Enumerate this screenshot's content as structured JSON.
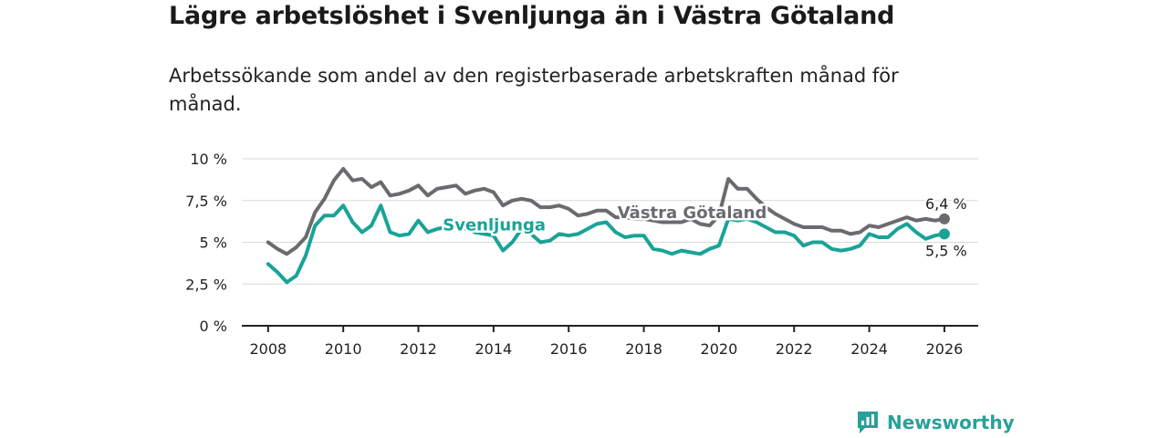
{
  "header": {
    "title": "Lägre arbetslöshet i Svenljunga än i Västra Götaland",
    "subtitle": "Arbetssökande som andel av den registerbaserade arbetskraften månad för månad."
  },
  "brand": {
    "name": "Newsworthy",
    "color": "#2aa198"
  },
  "chart_data": {
    "type": "line",
    "title": "Lägre arbetslöshet i Svenljunga än i Västra Götaland",
    "subtitle": "Arbetssökande som andel av den registerbaserade arbetskraften månad för månad.",
    "xlabel": "",
    "ylabel": "",
    "xlim": [
      2007.3,
      2026.9
    ],
    "ylim": [
      0,
      10
    ],
    "grid": true,
    "x_ticks": [
      2008,
      2010,
      2012,
      2014,
      2016,
      2018,
      2020,
      2022,
      2024,
      2026
    ],
    "x_tick_labels": [
      "2008",
      "2010",
      "2012",
      "2014",
      "2016",
      "2018",
      "2020",
      "2022",
      "2024",
      "2026"
    ],
    "y_ticks": [
      0,
      2.5,
      5,
      7.5,
      10
    ],
    "y_tick_labels": [
      "0 %",
      "2,5 %",
      "5 %",
      "7,5 %",
      "10 %"
    ],
    "series": [
      {
        "name": "Västra Götaland",
        "label": "Västra Götaland",
        "color": "#6b6a6e",
        "end_label": "6,4 %",
        "x": [
          2008.0,
          2008.25,
          2008.5,
          2008.75,
          2009.0,
          2009.25,
          2009.5,
          2009.75,
          2010.0,
          2010.25,
          2010.5,
          2010.75,
          2011.0,
          2011.25,
          2011.5,
          2011.75,
          2012.0,
          2012.25,
          2012.5,
          2012.75,
          2013.0,
          2013.25,
          2013.5,
          2013.75,
          2014.0,
          2014.25,
          2014.5,
          2014.75,
          2015.0,
          2015.25,
          2015.5,
          2015.75,
          2016.0,
          2016.25,
          2016.5,
          2016.75,
          2017.0,
          2017.25,
          2017.5,
          2017.75,
          2018.0,
          2018.25,
          2018.5,
          2018.75,
          2019.0,
          2019.25,
          2019.5,
          2019.75,
          2020.0,
          2020.25,
          2020.5,
          2020.75,
          2021.0,
          2021.25,
          2021.5,
          2021.75,
          2022.0,
          2022.25,
          2022.5,
          2022.75,
          2023.0,
          2023.25,
          2023.5,
          2023.75,
          2024.0,
          2024.25,
          2024.5,
          2024.75,
          2025.0,
          2025.25,
          2025.5,
          2025.75,
          2026.0
        ],
        "values": [
          5.0,
          4.6,
          4.3,
          4.7,
          5.3,
          6.8,
          7.6,
          8.7,
          9.4,
          8.7,
          8.8,
          8.3,
          8.6,
          7.8,
          7.9,
          8.1,
          8.4,
          7.8,
          8.2,
          8.3,
          8.4,
          7.9,
          8.1,
          8.2,
          8.0,
          7.2,
          7.5,
          7.6,
          7.5,
          7.1,
          7.1,
          7.2,
          7.0,
          6.6,
          6.7,
          6.9,
          6.9,
          6.5,
          6.5,
          6.4,
          6.4,
          6.3,
          6.2,
          6.2,
          6.2,
          6.4,
          6.1,
          6.0,
          6.6,
          8.8,
          8.2,
          8.2,
          7.6,
          7.1,
          6.7,
          6.4,
          6.1,
          5.9,
          5.9,
          5.9,
          5.7,
          5.7,
          5.5,
          5.6,
          6.0,
          5.9,
          6.1,
          6.3,
          6.5,
          6.3,
          6.4,
          6.3,
          6.4
        ]
      },
      {
        "name": "Svenljunga",
        "label": "Svenljunga",
        "color": "#1aa397",
        "end_label": "5,5 %",
        "x": [
          2008.0,
          2008.25,
          2008.5,
          2008.75,
          2009.0,
          2009.25,
          2009.5,
          2009.75,
          2010.0,
          2010.25,
          2010.5,
          2010.75,
          2011.0,
          2011.25,
          2011.5,
          2011.75,
          2012.0,
          2012.25,
          2012.5,
          2012.75,
          2013.0,
          2013.25,
          2013.5,
          2013.75,
          2014.0,
          2014.25,
          2014.5,
          2014.75,
          2015.0,
          2015.25,
          2015.5,
          2015.75,
          2016.0,
          2016.25,
          2016.5,
          2016.75,
          2017.0,
          2017.25,
          2017.5,
          2017.75,
          2018.0,
          2018.25,
          2018.5,
          2018.75,
          2019.0,
          2019.25,
          2019.5,
          2019.75,
          2020.0,
          2020.25,
          2020.5,
          2020.75,
          2021.0,
          2021.25,
          2021.5,
          2021.75,
          2022.0,
          2022.25,
          2022.5,
          2022.75,
          2023.0,
          2023.25,
          2023.5,
          2023.75,
          2024.0,
          2024.25,
          2024.5,
          2024.75,
          2025.0,
          2025.25,
          2025.5,
          2025.75,
          2026.0
        ],
        "values": [
          3.7,
          3.2,
          2.6,
          3.0,
          4.2,
          6.0,
          6.6,
          6.6,
          7.2,
          6.2,
          5.6,
          6.0,
          7.2,
          5.6,
          5.4,
          5.5,
          6.3,
          5.6,
          5.8,
          5.9,
          6.1,
          5.8,
          5.6,
          5.5,
          5.4,
          4.5,
          5.0,
          5.8,
          5.5,
          5.0,
          5.1,
          5.5,
          5.4,
          5.5,
          5.8,
          6.1,
          6.2,
          5.6,
          5.3,
          5.4,
          5.4,
          4.6,
          4.5,
          4.3,
          4.5,
          4.4,
          4.3,
          4.6,
          4.8,
          6.4,
          6.3,
          6.4,
          6.2,
          5.9,
          5.6,
          5.6,
          5.4,
          4.8,
          5.0,
          5.0,
          4.6,
          4.5,
          4.6,
          4.8,
          5.5,
          5.3,
          5.3,
          5.8,
          6.1,
          5.6,
          5.2,
          5.4,
          5.5
        ]
      }
    ]
  }
}
